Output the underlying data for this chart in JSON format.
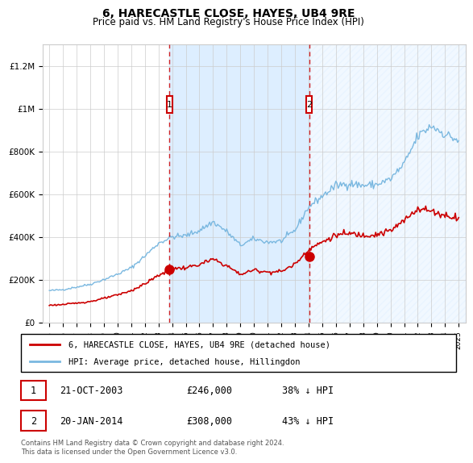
{
  "title": "6, HARECASTLE CLOSE, HAYES, UB4 9RE",
  "subtitle": "Price paid vs. HM Land Registry's House Price Index (HPI)",
  "title_fontsize": 10,
  "subtitle_fontsize": 8.5,
  "ylabel_ticks": [
    "£0",
    "£200K",
    "£400K",
    "£600K",
    "£800K",
    "£1M",
    "£1.2M"
  ],
  "ytick_values": [
    0,
    200000,
    400000,
    600000,
    800000,
    1000000,
    1200000
  ],
  "ylim": [
    0,
    1300000
  ],
  "xlim_start": 1994.5,
  "xlim_end": 2025.5,
  "hpi_color": "#7ab8e0",
  "price_color": "#cc0000",
  "shade_color": "#ddeeff",
  "transaction1_x": 2003.8,
  "transaction1_y": 246000,
  "transaction1_label": "1",
  "transaction2_x": 2014.05,
  "transaction2_y": 308000,
  "transaction2_label": "2",
  "footnote": "Contains HM Land Registry data © Crown copyright and database right 2024.\nThis data is licensed under the Open Government Licence v3.0.",
  "legend_line1": "6, HARECASTLE CLOSE, HAYES, UB4 9RE (detached house)",
  "legend_line2": "HPI: Average price, detached house, Hillingdon",
  "table_row1": [
    "1",
    "21-OCT-2003",
    "£246,000",
    "38% ↓ HPI"
  ],
  "table_row2": [
    "2",
    "20-JAN-2014",
    "£308,000",
    "43% ↓ HPI"
  ]
}
